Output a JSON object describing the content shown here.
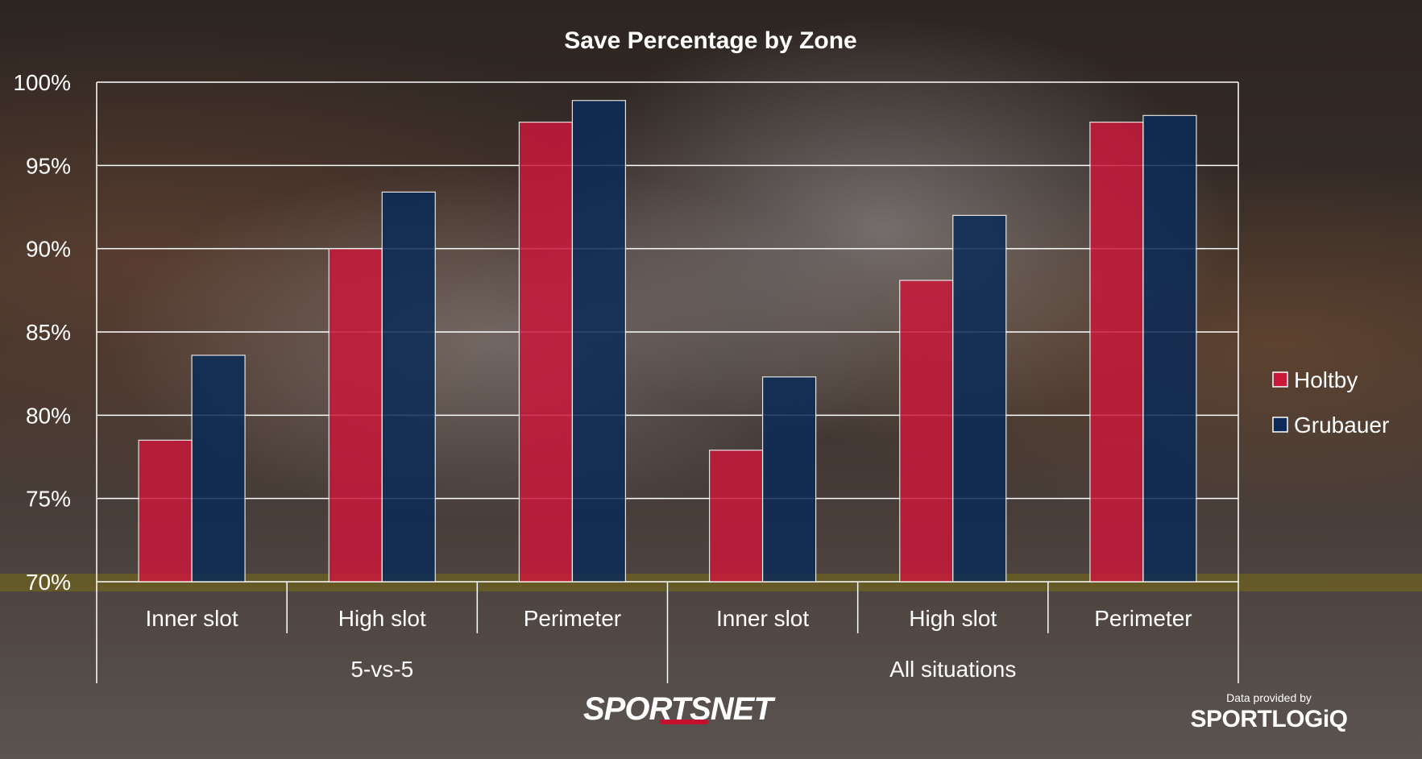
{
  "colors": {
    "holtby": "#c8193a",
    "grubauer": "#0b2a57",
    "gridline": "#ffffff",
    "text": "#ffffff"
  },
  "logo": {
    "sportsnet": "SPORTSNET",
    "credit": "Data provided by",
    "sportlogiq": "SPORTLOGiQ"
  },
  "chart_data": {
    "type": "bar",
    "title": "Save Percentage by Zone",
    "xlabel": "",
    "ylabel": "",
    "ylim": [
      70,
      100
    ],
    "yticks": [
      "100%",
      "95%",
      "90%",
      "85%",
      "80%",
      "75%",
      "70%"
    ],
    "ytick_values": [
      100,
      95,
      90,
      85,
      80,
      75,
      70
    ],
    "categories": [
      "Inner slot",
      "High slot",
      "Perimeter",
      "Inner slot",
      "High slot",
      "Perimeter"
    ],
    "groups": [
      {
        "label": "5-vs-5",
        "categories": [
          "Inner slot",
          "High slot",
          "Perimeter"
        ]
      },
      {
        "label": "All situations",
        "categories": [
          "Inner slot",
          "High slot",
          "Perimeter"
        ]
      }
    ],
    "series": [
      {
        "name": "Holtby",
        "values": [
          78.5,
          90.0,
          97.6,
          77.9,
          88.1,
          97.6
        ]
      },
      {
        "name": "Grubauer",
        "values": [
          83.6,
          93.4,
          98.9,
          82.3,
          92.0,
          98.0
        ]
      }
    ],
    "legend_position": "right",
    "grid": true
  }
}
